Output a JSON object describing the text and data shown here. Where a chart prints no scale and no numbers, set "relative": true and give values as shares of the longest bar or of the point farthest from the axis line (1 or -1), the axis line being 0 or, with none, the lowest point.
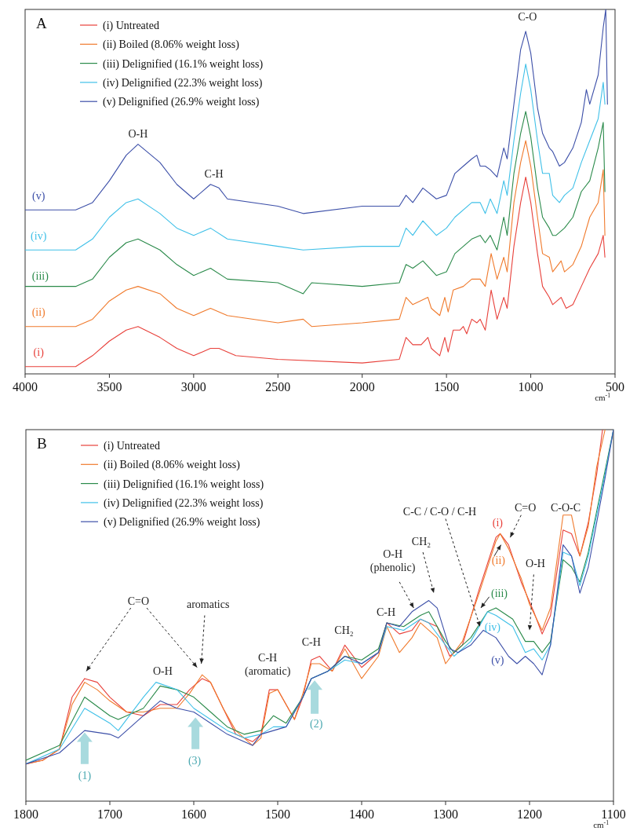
{
  "chart_data": [
    {
      "type": "line",
      "title": "A",
      "xlabel": "cm$^{-1}$",
      "relative": true,
      "legend": "top left",
      "grid": false,
      "marker": "none",
      "line_style": "solid",
      "xlim": [
        4000,
        500
      ],
      "xticks": [
        4000,
        3500,
        3000,
        2500,
        2000,
        1500,
        1000,
        500
      ],
      "annotations": [
        "O-H",
        "C-H",
        "C-O",
        "(v)",
        "(iv)",
        "(iii)",
        "(ii)",
        "(i)"
      ],
      "series": [
        {
          "name": "(i) Untreated",
          "color": "#e8403a",
          "x": [
            4000,
            3700,
            3600,
            3500,
            3400,
            3330,
            3200,
            3100,
            3000,
            2950,
            2900,
            2850,
            2750,
            2500,
            2000,
            1780,
            1740,
            1700,
            1650,
            1610,
            1590,
            1540,
            1510,
            1490,
            1460,
            1420,
            1400,
            1380,
            1350,
            1320,
            1300,
            1270,
            1235,
            1200,
            1160,
            1140,
            1100,
            1060,
            1030,
            1000,
            960,
            930,
            890,
            870,
            820,
            790,
            750,
            700,
            650,
            600,
            570,
            560
          ],
          "values": [
            0.02,
            0.02,
            0.05,
            0.09,
            0.12,
            0.13,
            0.1,
            0.07,
            0.05,
            0.06,
            0.07,
            0.07,
            0.05,
            0.04,
            0.03,
            0.04,
            0.1,
            0.08,
            0.08,
            0.1,
            0.07,
            0.05,
            0.1,
            0.06,
            0.12,
            0.12,
            0.13,
            0.11,
            0.15,
            0.14,
            0.15,
            0.12,
            0.23,
            0.15,
            0.21,
            0.18,
            0.35,
            0.47,
            0.54,
            0.47,
            0.33,
            0.24,
            0.21,
            0.19,
            0.21,
            0.18,
            0.19,
            0.24,
            0.29,
            0.33,
            0.38,
            0.32
          ]
        },
        {
          "name": "(ii) Boiled (8.06% weight loss)",
          "color": "#f07a2c",
          "x": [
            4000,
            3700,
            3600,
            3500,
            3400,
            3330,
            3200,
            3100,
            3000,
            2900,
            2800,
            2500,
            2350,
            2300,
            2000,
            1780,
            1740,
            1700,
            1610,
            1590,
            1540,
            1510,
            1490,
            1460,
            1400,
            1350,
            1300,
            1270,
            1235,
            1200,
            1160,
            1140,
            1100,
            1060,
            1030,
            1000,
            960,
            930,
            890,
            870,
            820,
            800,
            750,
            700,
            650,
            600,
            570,
            560
          ],
          "values": [
            0.13,
            0.13,
            0.15,
            0.2,
            0.23,
            0.24,
            0.22,
            0.18,
            0.16,
            0.18,
            0.16,
            0.14,
            0.15,
            0.13,
            0.14,
            0.15,
            0.21,
            0.19,
            0.21,
            0.18,
            0.16,
            0.21,
            0.17,
            0.23,
            0.24,
            0.26,
            0.26,
            0.24,
            0.33,
            0.26,
            0.32,
            0.28,
            0.47,
            0.58,
            0.64,
            0.57,
            0.43,
            0.33,
            0.32,
            0.28,
            0.31,
            0.28,
            0.3,
            0.35,
            0.43,
            0.47,
            0.56,
            0.38
          ]
        },
        {
          "name": "(iii) Delignified (16.1% weight loss)",
          "color": "#2a8a4a",
          "x": [
            4000,
            3700,
            3600,
            3500,
            3400,
            3330,
            3200,
            3100,
            3000,
            2900,
            2800,
            2500,
            2350,
            2300,
            2000,
            1780,
            1740,
            1700,
            1640,
            1560,
            1500,
            1450,
            1400,
            1350,
            1300,
            1270,
            1240,
            1200,
            1160,
            1140,
            1100,
            1060,
            1030,
            1000,
            960,
            930,
            890,
            870,
            850,
            800,
            750,
            700,
            650,
            600,
            570,
            560
          ],
          "values": [
            0.24,
            0.24,
            0.26,
            0.32,
            0.36,
            0.37,
            0.34,
            0.3,
            0.27,
            0.29,
            0.26,
            0.25,
            0.22,
            0.25,
            0.24,
            0.25,
            0.3,
            0.29,
            0.31,
            0.27,
            0.28,
            0.33,
            0.35,
            0.37,
            0.38,
            0.36,
            0.38,
            0.34,
            0.43,
            0.38,
            0.55,
            0.66,
            0.72,
            0.65,
            0.51,
            0.43,
            0.4,
            0.38,
            0.38,
            0.4,
            0.43,
            0.5,
            0.53,
            0.62,
            0.69,
            0.5
          ]
        },
        {
          "name": "(iv) Delignified (22.3% weight loss)",
          "color": "#3fc0e8",
          "x": [
            4000,
            3700,
            3600,
            3500,
            3400,
            3330,
            3200,
            3100,
            3000,
            2900,
            2800,
            2500,
            2350,
            2000,
            1780,
            1740,
            1700,
            1640,
            1560,
            1500,
            1450,
            1350,
            1300,
            1270,
            1240,
            1200,
            1160,
            1140,
            1100,
            1060,
            1030,
            1000,
            960,
            930,
            890,
            870,
            830,
            800,
            750,
            700,
            650,
            600,
            570,
            560
          ],
          "values": [
            0.34,
            0.34,
            0.37,
            0.43,
            0.47,
            0.48,
            0.44,
            0.4,
            0.38,
            0.4,
            0.37,
            0.35,
            0.34,
            0.35,
            0.35,
            0.4,
            0.38,
            0.42,
            0.38,
            0.4,
            0.43,
            0.47,
            0.47,
            0.44,
            0.48,
            0.44,
            0.53,
            0.49,
            0.64,
            0.77,
            0.85,
            0.78,
            0.64,
            0.55,
            0.55,
            0.49,
            0.47,
            0.49,
            0.51,
            0.58,
            0.64,
            0.7,
            0.8,
            0.74
          ]
        },
        {
          "name": "(v) Delignified (26.9% weight loss)",
          "color": "#3c4fa8",
          "x": [
            4000,
            3700,
            3600,
            3500,
            3400,
            3330,
            3200,
            3100,
            3000,
            2900,
            2850,
            2800,
            2500,
            2350,
            2000,
            1780,
            1740,
            1700,
            1640,
            1560,
            1500,
            1450,
            1400,
            1350,
            1320,
            1300,
            1270,
            1240,
            1200,
            1160,
            1140,
            1100,
            1060,
            1030,
            1000,
            960,
            930,
            890,
            870,
            830,
            800,
            750,
            700,
            670,
            650,
            600,
            570,
            555,
            545
          ],
          "values": [
            0.45,
            0.45,
            0.47,
            0.53,
            0.6,
            0.63,
            0.58,
            0.52,
            0.48,
            0.52,
            0.51,
            0.48,
            0.46,
            0.44,
            0.46,
            0.46,
            0.49,
            0.47,
            0.51,
            0.48,
            0.49,
            0.55,
            0.57,
            0.59,
            0.6,
            0.57,
            0.57,
            0.56,
            0.54,
            0.62,
            0.59,
            0.74,
            0.89,
            0.94,
            0.88,
            0.73,
            0.66,
            0.62,
            0.61,
            0.57,
            0.58,
            0.62,
            0.69,
            0.78,
            0.74,
            0.82,
            0.95,
            1.0,
            0.74
          ]
        }
      ]
    },
    {
      "type": "line",
      "title": "B",
      "xlabel": "cm$^{-1}$",
      "relative": true,
      "legend": "top left",
      "grid": false,
      "marker": "none",
      "line_style": "solid",
      "xlim": [
        1800,
        1100
      ],
      "xticks": [
        1800,
        1700,
        1600,
        1500,
        1400,
        1300,
        1200,
        1100
      ],
      "annotations": [
        "C=O",
        "aromatics",
        "O-H",
        "C-H\n(aromatic)",
        "C-H",
        "CH₂",
        "C-H",
        "O-H\n(phenolic)",
        "CH₂",
        "C-C / C-O / C-H",
        "C=O",
        "C-O-C",
        "O-H",
        "(i)",
        "(ii)",
        "(iii)",
        "(iv)",
        "(v)",
        "(1)",
        "(3)",
        "(2)"
      ],
      "series": [
        {
          "name": "(i) Untreated",
          "color": "#e8403a",
          "x": [
            1800,
            1780,
            1760,
            1745,
            1730,
            1715,
            1700,
            1680,
            1660,
            1640,
            1620,
            1605,
            1590,
            1580,
            1565,
            1550,
            1530,
            1520,
            1510,
            1500,
            1490,
            1480,
            1470,
            1460,
            1450,
            1435,
            1420,
            1400,
            1380,
            1370,
            1355,
            1340,
            1330,
            1310,
            1295,
            1280,
            1260,
            1240,
            1235,
            1225,
            1210,
            1195,
            1185,
            1175,
            1160,
            1150,
            1140,
            1130,
            1120,
            1113
          ],
          "values": [
            0.1,
            0.11,
            0.14,
            0.28,
            0.33,
            0.32,
            0.28,
            0.24,
            0.23,
            0.26,
            0.26,
            0.3,
            0.33,
            0.32,
            0.25,
            0.18,
            0.16,
            0.18,
            0.3,
            0.3,
            0.26,
            0.22,
            0.28,
            0.38,
            0.39,
            0.35,
            0.42,
            0.36,
            0.4,
            0.48,
            0.45,
            0.46,
            0.49,
            0.47,
            0.39,
            0.42,
            0.57,
            0.71,
            0.72,
            0.69,
            0.59,
            0.51,
            0.45,
            0.5,
            0.73,
            0.72,
            0.66,
            0.75,
            0.88,
            1.0
          ]
        },
        {
          "name": "(ii) Boiled (8.06% weight loss)",
          "color": "#f07a2c",
          "x": [
            1800,
            1780,
            1760,
            1745,
            1730,
            1715,
            1700,
            1680,
            1660,
            1640,
            1620,
            1605,
            1590,
            1580,
            1565,
            1550,
            1530,
            1520,
            1510,
            1500,
            1490,
            1480,
            1470,
            1460,
            1450,
            1435,
            1420,
            1400,
            1380,
            1370,
            1355,
            1340,
            1330,
            1310,
            1300,
            1280,
            1260,
            1240,
            1235,
            1225,
            1210,
            1200,
            1185,
            1175,
            1160,
            1150,
            1140,
            1130,
            1120,
            1110
          ],
          "values": [
            0.1,
            0.11,
            0.14,
            0.26,
            0.32,
            0.3,
            0.27,
            0.24,
            0.24,
            0.25,
            0.25,
            0.29,
            0.34,
            0.32,
            0.25,
            0.19,
            0.15,
            0.17,
            0.29,
            0.3,
            0.26,
            0.22,
            0.29,
            0.37,
            0.37,
            0.35,
            0.41,
            0.33,
            0.39,
            0.47,
            0.4,
            0.44,
            0.48,
            0.44,
            0.37,
            0.43,
            0.56,
            0.7,
            0.72,
            0.68,
            0.6,
            0.53,
            0.46,
            0.52,
            0.77,
            0.77,
            0.66,
            0.74,
            0.9,
            1.0
          ]
        },
        {
          "name": "(iii) Delignified (16.1% weight loss)",
          "color": "#2a8a4a",
          "x": [
            1800,
            1760,
            1730,
            1700,
            1690,
            1660,
            1640,
            1620,
            1600,
            1580,
            1560,
            1540,
            1520,
            1505,
            1490,
            1470,
            1460,
            1440,
            1420,
            1400,
            1380,
            1370,
            1350,
            1330,
            1320,
            1300,
            1290,
            1270,
            1250,
            1240,
            1220,
            1205,
            1195,
            1185,
            1175,
            1160,
            1150,
            1140,
            1130,
            1110,
            1100
          ],
          "values": [
            0.11,
            0.15,
            0.28,
            0.23,
            0.22,
            0.25,
            0.31,
            0.3,
            0.28,
            0.24,
            0.2,
            0.18,
            0.19,
            0.23,
            0.21,
            0.28,
            0.33,
            0.35,
            0.39,
            0.38,
            0.41,
            0.48,
            0.47,
            0.5,
            0.51,
            0.43,
            0.4,
            0.44,
            0.51,
            0.52,
            0.49,
            0.43,
            0.43,
            0.4,
            0.43,
            0.65,
            0.63,
            0.59,
            0.67,
            0.89,
            1.0
          ]
        },
        {
          "name": "(iv) Delignified (22.3% weight loss)",
          "color": "#3fc0e8",
          "x": [
            1800,
            1760,
            1730,
            1700,
            1690,
            1660,
            1645,
            1620,
            1600,
            1580,
            1560,
            1540,
            1520,
            1505,
            1490,
            1470,
            1460,
            1440,
            1420,
            1400,
            1380,
            1370,
            1350,
            1330,
            1320,
            1300,
            1290,
            1270,
            1250,
            1240,
            1220,
            1205,
            1195,
            1185,
            1175,
            1160,
            1150,
            1140,
            1130,
            1110,
            1100
          ],
          "values": [
            0.1,
            0.14,
            0.25,
            0.21,
            0.19,
            0.28,
            0.32,
            0.3,
            0.25,
            0.22,
            0.19,
            0.17,
            0.18,
            0.2,
            0.2,
            0.28,
            0.33,
            0.35,
            0.38,
            0.37,
            0.4,
            0.47,
            0.46,
            0.49,
            0.48,
            0.42,
            0.39,
            0.43,
            0.51,
            0.5,
            0.47,
            0.4,
            0.41,
            0.38,
            0.42,
            0.67,
            0.66,
            0.58,
            0.66,
            0.88,
            1.0
          ]
        },
        {
          "name": "(v) Delignified (26.9% weight loss)",
          "color": "#3c4fa8",
          "x": [
            1800,
            1760,
            1730,
            1700,
            1690,
            1660,
            1640,
            1620,
            1600,
            1580,
            1560,
            1540,
            1530,
            1520,
            1505,
            1490,
            1470,
            1460,
            1440,
            1420,
            1400,
            1380,
            1370,
            1355,
            1340,
            1320,
            1310,
            1295,
            1285,
            1270,
            1255,
            1240,
            1225,
            1215,
            1205,
            1195,
            1185,
            1175,
            1160,
            1150,
            1140,
            1130,
            1110,
            1100
          ],
          "values": [
            0.1,
            0.13,
            0.19,
            0.18,
            0.17,
            0.23,
            0.27,
            0.25,
            0.24,
            0.21,
            0.18,
            0.16,
            0.15,
            0.18,
            0.19,
            0.2,
            0.28,
            0.33,
            0.35,
            0.39,
            0.37,
            0.4,
            0.48,
            0.47,
            0.51,
            0.54,
            0.52,
            0.41,
            0.4,
            0.42,
            0.46,
            0.44,
            0.39,
            0.37,
            0.39,
            0.37,
            0.34,
            0.42,
            0.69,
            0.66,
            0.56,
            0.63,
            0.87,
            1.0
          ]
        }
      ]
    }
  ]
}
